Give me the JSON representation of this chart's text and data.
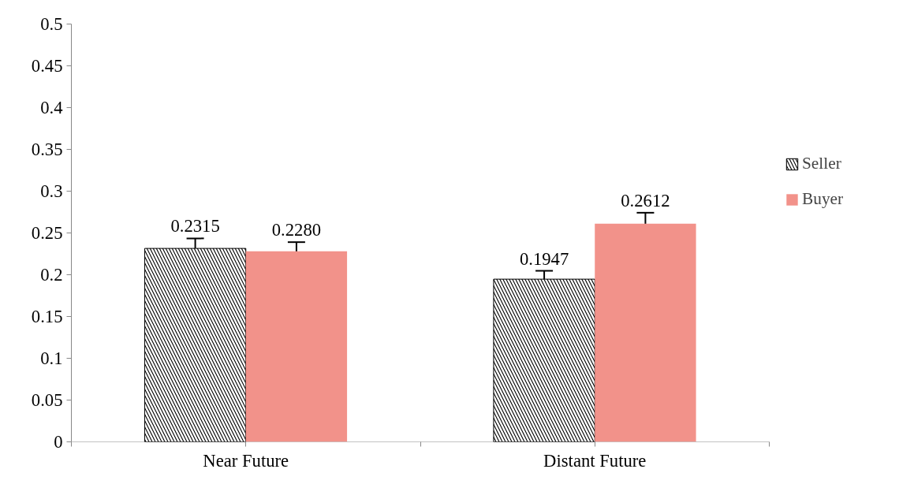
{
  "chart_data": {
    "type": "bar",
    "categories": [
      "Near Future",
      "Distant Future"
    ],
    "series": [
      {
        "name": "Seller",
        "color": "#000000",
        "values": [
          0.2315,
          0.1947
        ],
        "errors": [
          0.012,
          0.01
        ],
        "value_labels": [
          "0.2315",
          "0.1947"
        ]
      },
      {
        "name": "Buyer",
        "color": "#f2928a",
        "values": [
          0.228,
          0.2612
        ],
        "errors": [
          0.011,
          0.013
        ],
        "value_labels": [
          "0.2280",
          "0.2612"
        ]
      }
    ],
    "ylim": [
      0,
      0.5
    ],
    "yticks": [
      0,
      0.05,
      0.1,
      0.15,
      0.2,
      0.25,
      0.3,
      0.35,
      0.4,
      0.45,
      0.5
    ],
    "grid": false,
    "legend": "right"
  }
}
